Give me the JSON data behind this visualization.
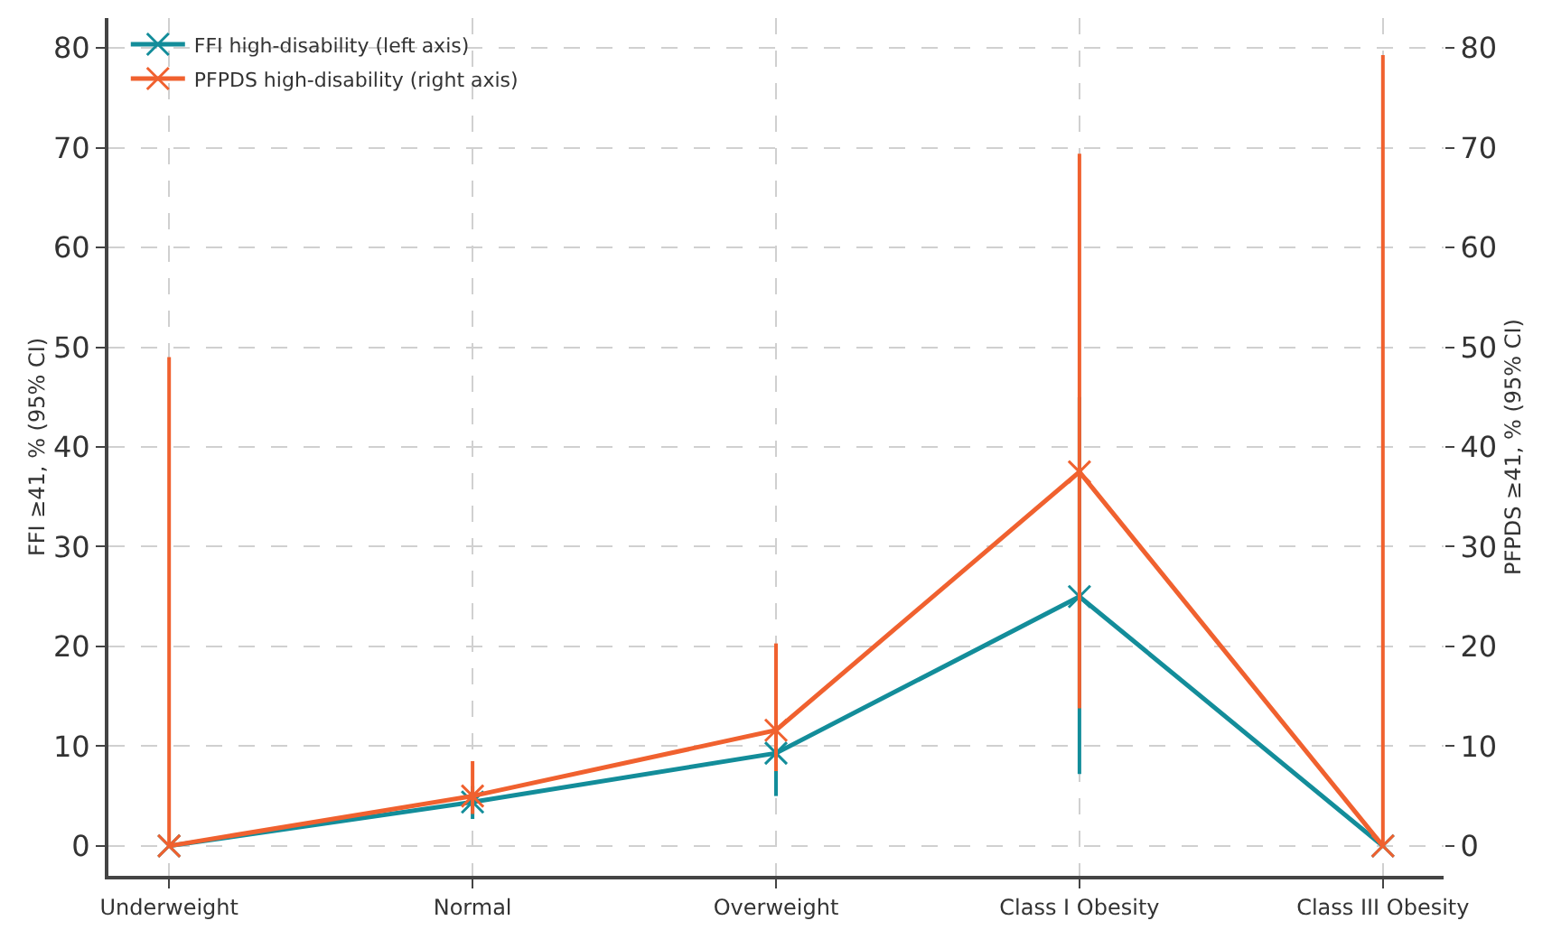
{
  "chart_data": {
    "type": "line",
    "categories": [
      "Underweight",
      "Normal",
      "Overweight",
      "Class I Obesity",
      "Class III Obesity"
    ],
    "series": [
      {
        "name": "FFI high-disability (left axis)",
        "color": "#138d9a",
        "values": [
          0,
          4.4,
          9.3,
          25,
          0
        ],
        "errors": [
          null,
          [
            2.7,
            6
          ],
          [
            5,
            14
          ],
          [
            7.2,
            45
          ],
          null
        ]
      },
      {
        "name": "PFPDS high-disability (right axis)",
        "color": "#f0612f",
        "axis": "y2",
        "values": [
          0,
          5,
          11.6,
          37.5,
          0
        ],
        "errors": [
          [
            0,
            49
          ],
          [
            3.2,
            8.5
          ],
          [
            7.5,
            20.3
          ],
          [
            13.8,
            69.4
          ],
          [
            0,
            79.3
          ]
        ]
      }
    ],
    "ylabel": "FFI ≥41, % (95% CI)",
    "y2label": "PFPDS ≥41, % (95% CI)",
    "ylim": [
      -3,
      83
    ],
    "yticks": [
      0,
      10,
      20,
      30,
      40,
      50,
      60,
      70,
      80
    ],
    "y2lim": [
      -3,
      83
    ],
    "y2ticks": [
      0,
      10,
      20,
      30,
      40,
      50,
      60,
      70,
      80
    ],
    "grid": true,
    "legend": "top left",
    "marker": "cross",
    "line_style": "solid"
  }
}
